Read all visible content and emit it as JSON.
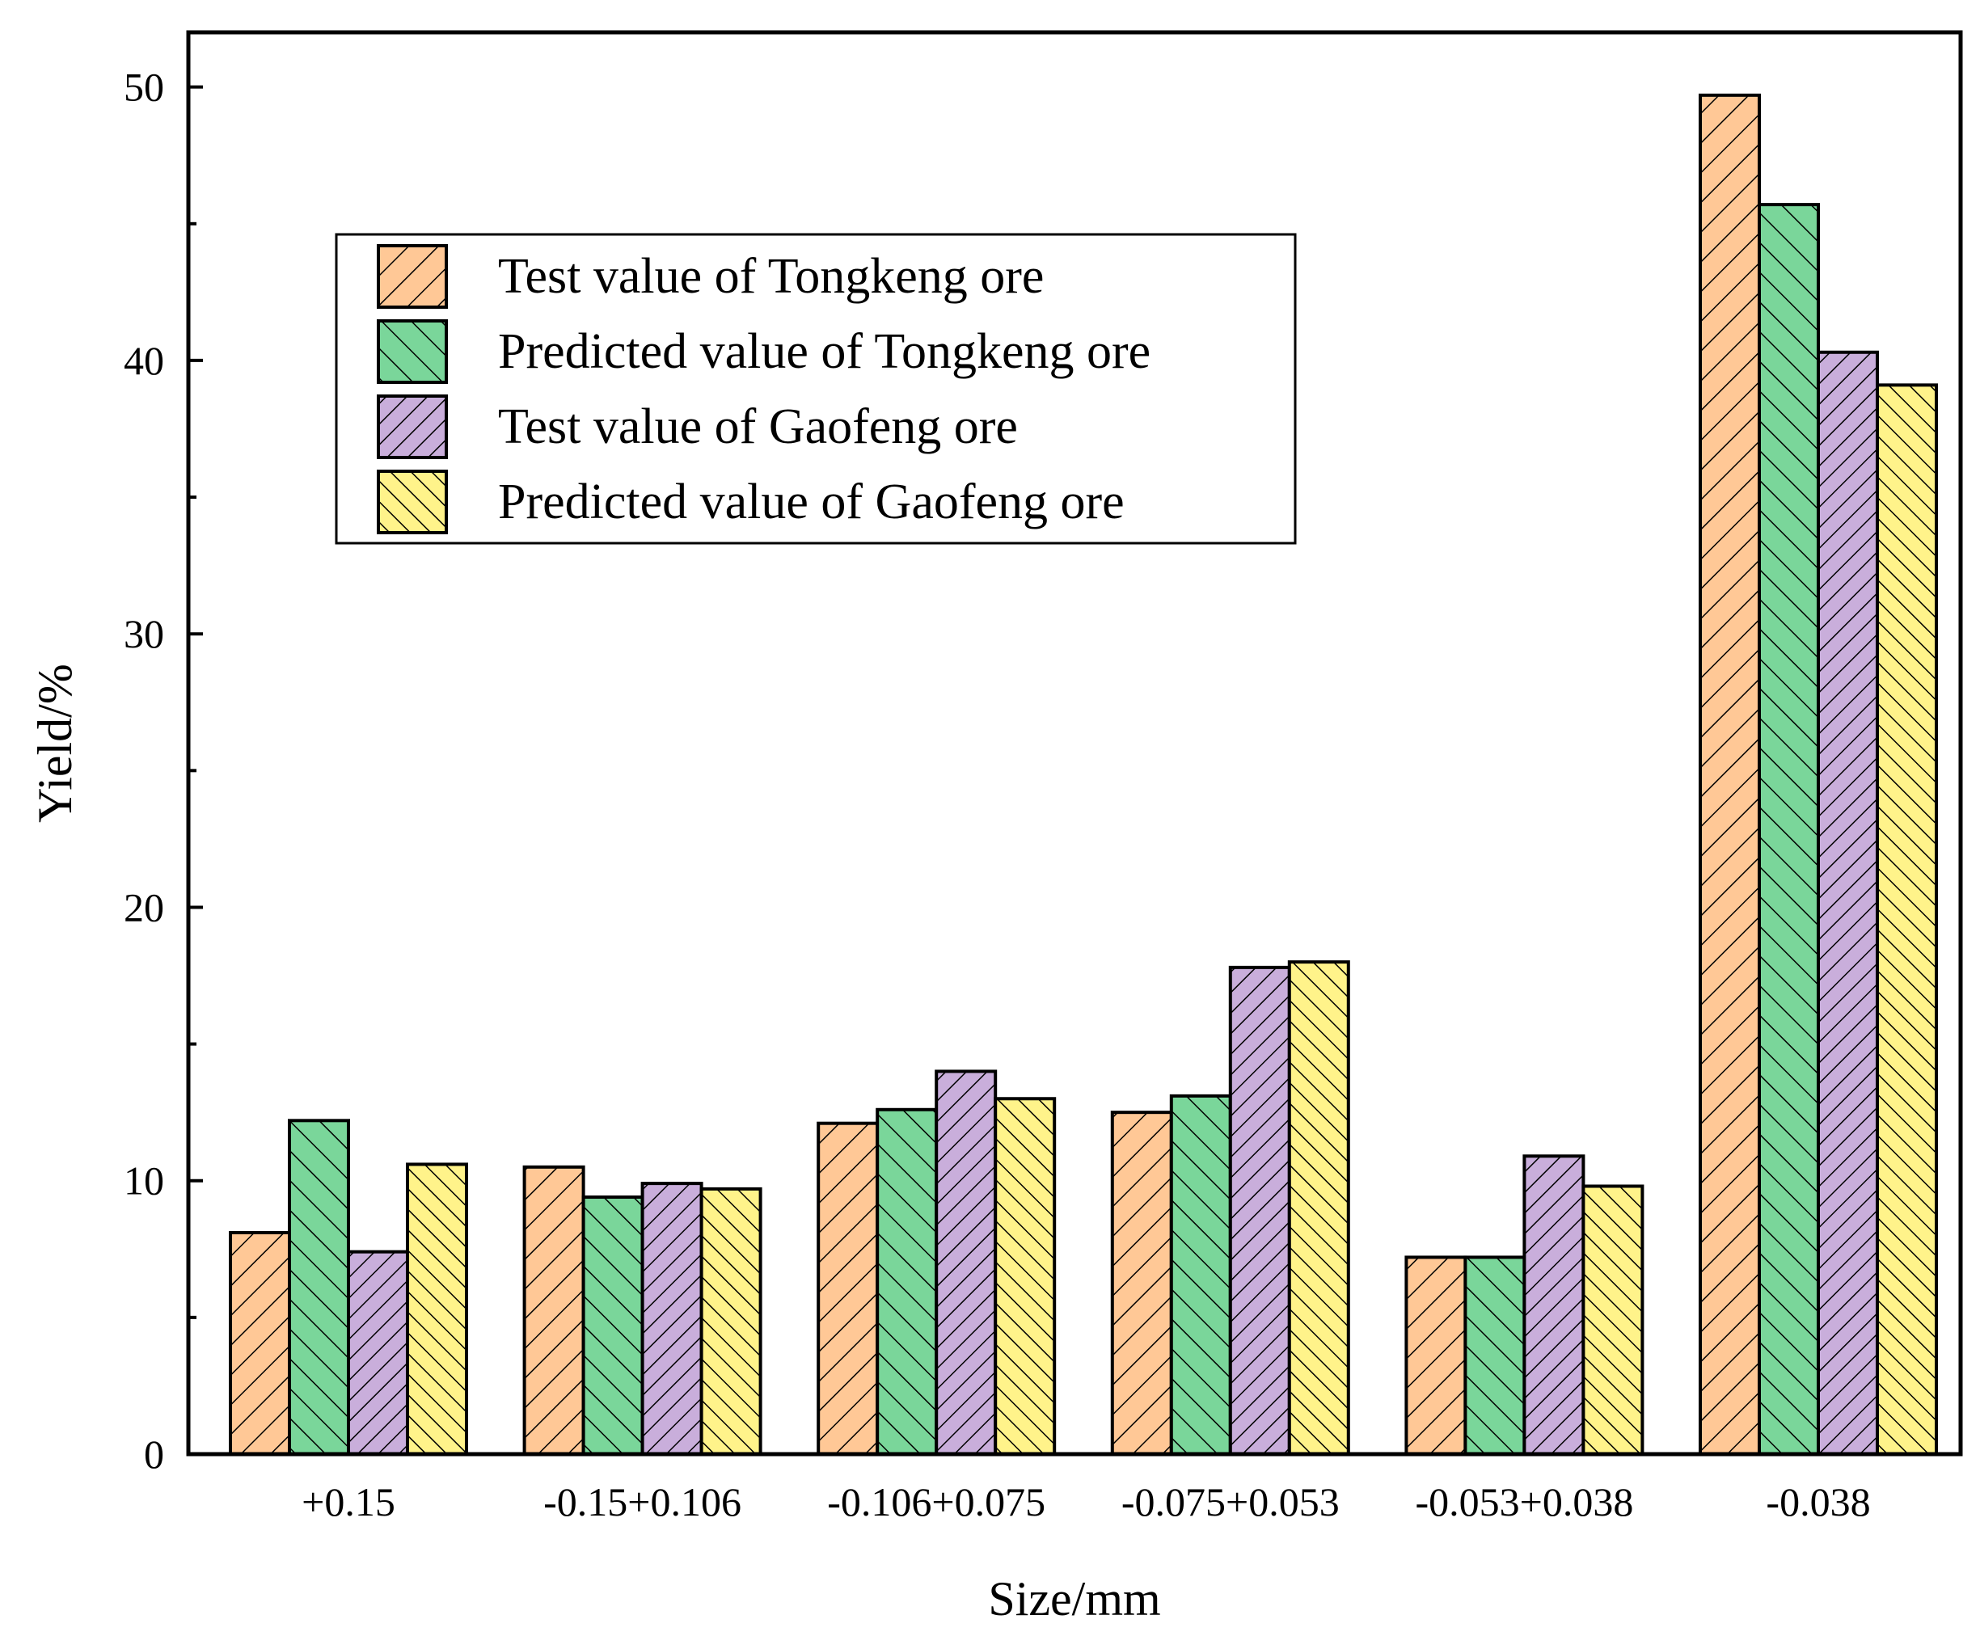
{
  "chart_data": {
    "type": "bar",
    "title": "",
    "xlabel": "Size/mm",
    "ylabel": "Yield/%",
    "ylim": [
      0,
      50
    ],
    "yticks": [
      "0",
      "10",
      "20",
      "30",
      "40",
      "50"
    ],
    "categories": [
      "+0.15",
      "-0.15+0.106",
      "-0.106+0.075",
      "-0.075+0.053",
      "-0.053+0.038",
      "-0.038"
    ],
    "legend_position": "upper-left",
    "series": [
      {
        "name": "Test value of Tongkeng ore",
        "color": "#FFC896",
        "hatch": "forward",
        "values": [
          8.1,
          10.5,
          12.1,
          12.5,
          7.2,
          49.7
        ]
      },
      {
        "name": "Predicted value of Tongkeng ore",
        "color": "#7AD69A",
        "hatch": "backward",
        "values": [
          12.2,
          9.4,
          12.6,
          13.1,
          7.2,
          45.7
        ]
      },
      {
        "name": "Test value of Gaofeng ore",
        "color": "#C9AEDB",
        "hatch": "forward-dense",
        "values": [
          7.4,
          9.9,
          14.0,
          17.8,
          10.9,
          40.3
        ]
      },
      {
        "name": "Predicted value of Gaofeng ore",
        "color": "#FFF38A",
        "hatch": "backward-dense",
        "values": [
          10.6,
          9.7,
          13.0,
          18.0,
          9.8,
          39.1
        ]
      }
    ]
  }
}
